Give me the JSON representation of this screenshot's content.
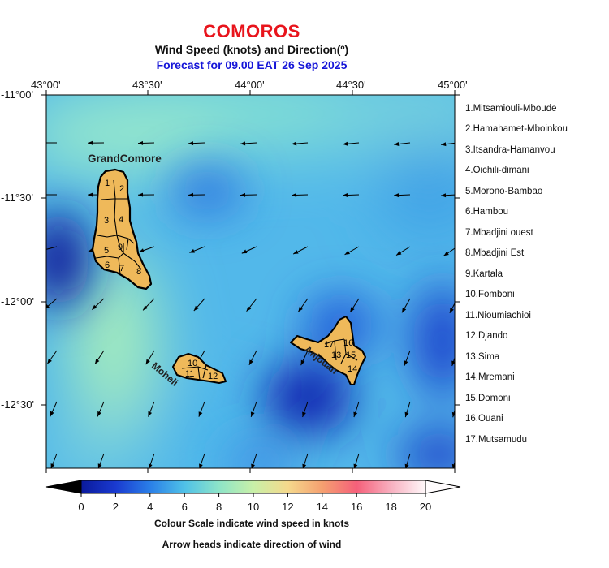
{
  "header": {
    "title": "COMOROS",
    "subtitle": "Wind Speed (knots) and Direction(º)",
    "forecast": "Forecast for  09.00 EAT 26 Sep 2025"
  },
  "axes": {
    "lon_ticks": [
      "43°00'",
      "43°30'",
      "44°00'",
      "44°30'",
      "45°00'"
    ],
    "lat_ticks": [
      "-11°00'",
      "-11°30'",
      "-12°00'",
      "-12°30'"
    ]
  },
  "islands": {
    "grand_comore": "GrandComore",
    "moheli": "Moheli",
    "anjouan": "Anjouan"
  },
  "region_numbers": [
    "1",
    "2",
    "3",
    "4",
    "5",
    "6",
    "7",
    "8",
    "9",
    "10",
    "11",
    "12",
    "13",
    "14",
    "15",
    "16",
    "17"
  ],
  "regions": [
    "1.Mitsamiouli-Mboude",
    "2.Hamahamet-Mboinkou",
    "3.Itsandra-Hamanvou",
    "4.Oichili-dimani",
    "5.Morono-Bambao",
    "6.Hambou",
    "7.Mbadjini ouest",
    "8.Mbadjini Est",
    "9.Kartala",
    "10.Fomboni",
    "11.Nioumiachioi",
    "12.Djando",
    "13.Sima",
    "14.Mremani",
    "15.Domoni",
    "16.Ouani",
    "17.Mutsamudu"
  ],
  "colorbar": {
    "labels": [
      "0",
      "2",
      "4",
      "6",
      "8",
      "10",
      "12",
      "14",
      "16",
      "18",
      "20"
    ],
    "colors": [
      "#000000",
      "#1a2fd0",
      "#2a7fe8",
      "#4fc1e8",
      "#8de4c8",
      "#c8f0a8",
      "#f5d98c",
      "#f59066",
      "#f5608a",
      "#f8b8c8",
      "#ffffff"
    ]
  },
  "notes": {
    "scale": "Colour Scale indicate wind speed in knots",
    "arrows": "Arrow heads indicate direction of wind"
  }
}
